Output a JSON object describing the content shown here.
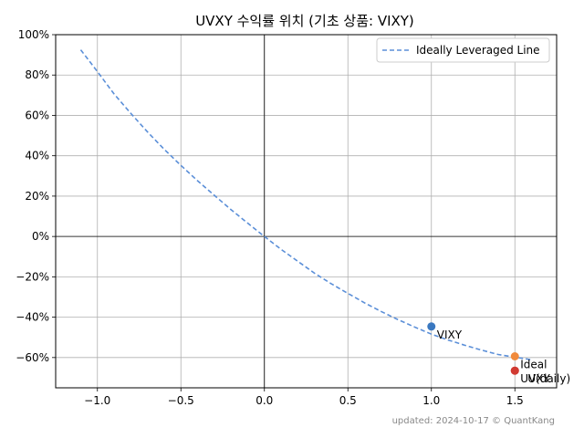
{
  "chart_data": {
    "type": "line",
    "title": "UVXY 수익률 위치 (기초 상품: VIXY)",
    "xlabel": "",
    "ylabel": "",
    "xlim": [
      -1.25,
      1.75
    ],
    "ylim": [
      -0.75,
      1.0
    ],
    "x_ticks": [
      -1.0,
      -0.5,
      0.0,
      0.5,
      1.0,
      1.5
    ],
    "x_tick_labels": [
      "−1.0",
      "−0.5",
      "0.0",
      "0.5",
      "1.0",
      "1.5"
    ],
    "y_ticks": [
      1.0,
      0.8,
      0.6,
      0.4,
      0.2,
      0.0,
      -0.2,
      -0.4,
      -0.6
    ],
    "y_tick_labels": [
      "100%",
      "80%",
      "60%",
      "40%",
      "20%",
      "0%",
      "−20%",
      "−40%",
      "−60%"
    ],
    "grid": true,
    "legend_position": "top-right",
    "series": [
      {
        "name": "Ideally Leveraged Line",
        "color": "#5b8fd8",
        "style": "dashed",
        "x": [
          -1.1,
          -1.0,
          -0.9,
          -0.8,
          -0.7,
          -0.6,
          -0.5,
          -0.4,
          -0.3,
          -0.2,
          -0.1,
          0.0,
          0.1,
          0.2,
          0.3,
          0.4,
          0.5,
          0.6,
          0.7,
          0.8,
          0.9,
          1.0,
          1.1,
          1.2,
          1.3,
          1.4,
          1.5,
          1.6
        ],
        "y": [
          0.925,
          0.817,
          0.706,
          0.61,
          0.518,
          0.432,
          0.352,
          0.276,
          0.204,
          0.133,
          0.066,
          0.0,
          -0.064,
          -0.123,
          -0.182,
          -0.234,
          -0.282,
          -0.329,
          -0.372,
          -0.412,
          -0.449,
          -0.484,
          -0.513,
          -0.539,
          -0.563,
          -0.585,
          -0.598,
          -0.611
        ]
      }
    ],
    "points": [
      {
        "label": "VIXY",
        "x": 1.0,
        "y": -0.446,
        "color": "#3a78c0"
      },
      {
        "label": "Ideal",
        "x": 1.5,
        "y": -0.594,
        "color": "#f08a3c"
      },
      {
        "label": "UVXY",
        "x": 1.5,
        "y": -0.665,
        "color": "#d13a32"
      },
      {
        "label": "U(daily)",
        "x": 1.5,
        "y": -0.665,
        "color": "#d13a32"
      }
    ],
    "credit": "updated: 2024-10-17 © QuantKang"
  }
}
